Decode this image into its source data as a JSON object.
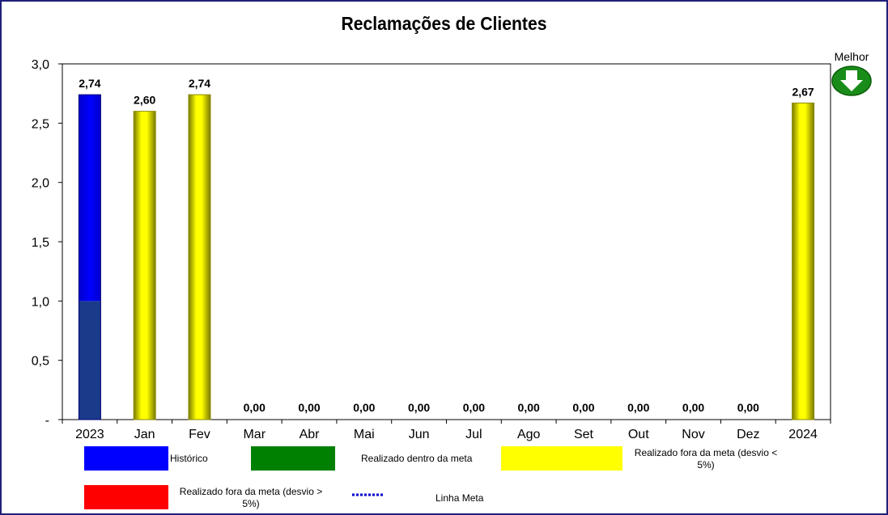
{
  "chart_data": {
    "type": "bar",
    "title": "Reclamações de Clientes",
    "categories": [
      "2023",
      "Jan",
      "Fev",
      "Mar",
      "Abr",
      "Mai",
      "Jun",
      "Jul",
      "Ago",
      "Set",
      "Out",
      "Nov",
      "Dez",
      "2024"
    ],
    "values": [
      2.74,
      2.6,
      2.74,
      0.0,
      0.0,
      0.0,
      0.0,
      0.0,
      0.0,
      0.0,
      0.0,
      0.0,
      0.0,
      2.67
    ],
    "value_labels": [
      "2,74",
      "2,60",
      "2,74",
      "0,00",
      "0,00",
      "0,00",
      "0,00",
      "0,00",
      "0,00",
      "0,00",
      "0,00",
      "0,00",
      "0,00",
      "2,67"
    ],
    "bar_status": [
      "historico",
      "fora_menor5",
      "fora_menor5",
      "none",
      "none",
      "none",
      "none",
      "none",
      "none",
      "none",
      "none",
      "none",
      "none",
      "fora_menor5"
    ],
    "historico_lower_segment": 1.0,
    "ylim": [
      0,
      3.0
    ],
    "yticks": [
      0,
      0.5,
      1.0,
      1.5,
      2.0,
      2.5,
      3.0
    ],
    "ytick_labels": [
      "-",
      "0,5",
      "1,0",
      "1,5",
      "2,0",
      "2,5",
      "3,0"
    ],
    "xlabel": "",
    "ylabel": "",
    "grid": false,
    "legend_position": "bottom"
  },
  "better_indicator": {
    "label": "Melhor",
    "icon": "arrow-down-icon",
    "color": "#1a8c1a"
  },
  "legend": {
    "historico": {
      "label": "Histórico",
      "color": "#0000ff"
    },
    "dentro": {
      "label": "Realizado dentro da meta",
      "color": "#008000"
    },
    "fora_menor5": {
      "label_line1": "Realizado fora da meta (desvio <",
      "label_line2": "5%)",
      "color": "#ffff00"
    },
    "fora_maior5": {
      "label_line1": "Realizado fora da meta (desvio >",
      "label_line2": "5%)",
      "color": "#ff0000"
    },
    "linha_meta": {
      "label": "Linha Meta",
      "color": "#0000cc"
    }
  },
  "colors": {
    "historico_lower": "#1a3a8a",
    "yellow_dark": "#8a8a00",
    "blue_dark": "#00007a"
  }
}
